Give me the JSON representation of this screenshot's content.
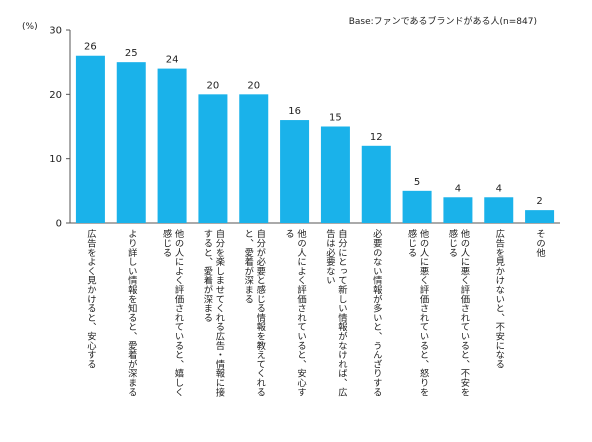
{
  "chart_data": {
    "type": "bar",
    "base_note": "Base:ファンであるブランドがある人(n=847)",
    "unit_label": "(%)",
    "ylim": [
      0,
      30
    ],
    "yticks": [
      0,
      10,
      20,
      30
    ],
    "grid": false,
    "bar_color": "#1ab2ea",
    "categories": [
      "広告をよく見かけると、安心する",
      "より詳しい情報を知ると、愛着が深まる",
      "他の人によく評価されていると、嬉しく感じる",
      "自分を楽しませてくれる広告・情報に接すると、愛着が深まる",
      "自分が必要と感じる情報を教えてくれると、愛着が深まる",
      "他の人によく評価されていると、安心する",
      "自分にとって新しい情報がなければ、広告は必要ない",
      "必要のない情報が多いと、うんざりする",
      "他の人に悪く評価されていると、怒りを感じる",
      "他の人に悪く評価されていると、不安を感じる",
      "広告を見かけないと、不安になる",
      "その他"
    ],
    "values": [
      26,
      25,
      24,
      20,
      20,
      16,
      15,
      12,
      5,
      4,
      4,
      2
    ]
  }
}
